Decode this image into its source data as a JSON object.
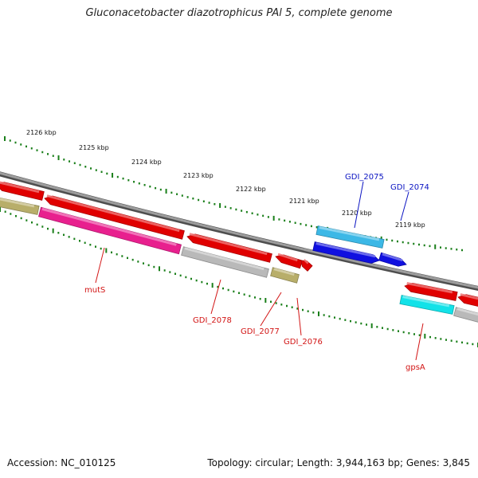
{
  "title": "Gluconacetobacter diazotrophicus PAl 5, complete genome",
  "footer": {
    "accession": "Accession: NC_010125",
    "topology": "Topology: circular; Length: 3,944,163 bp; Genes: 3,845"
  },
  "colors": {
    "backbone": "#8a8a8a",
    "tick": "#1a7f1a",
    "forward_label": "#0b14c2",
    "reverse_label": "#d21414",
    "red": "#e00000",
    "magenta": "#e8208e",
    "gray": "#b9b9b9",
    "olive": "#b8ae6a",
    "lightblue": "#3cb8e6",
    "blue": "#1010e0",
    "cyan": "#12e2e8"
  },
  "scale_labels": [
    "2126 kbp",
    "2125 kbp",
    "2124 kbp",
    "2123 kbp",
    "2122 kbp",
    "2121 kbp",
    "2120 kbp",
    "2119 kbp"
  ],
  "gene_labels": {
    "forward": [
      "GDI_2075",
      "GDI_2074"
    ],
    "reverse": [
      "mutS",
      "GDI_2078",
      "GDI_2077",
      "GDI_2076",
      "gpsA"
    ]
  }
}
